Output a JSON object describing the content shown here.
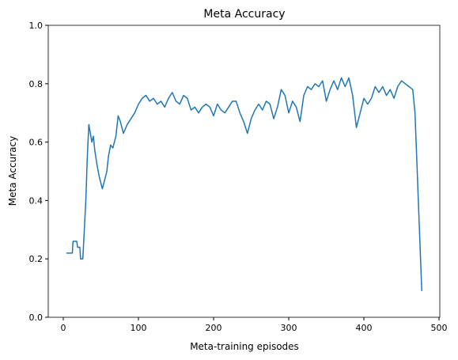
{
  "chart_data": {
    "type": "line",
    "title": "Meta Accuracy",
    "xlabel": "Meta-training episodes",
    "ylabel": "Meta Accuracy",
    "x": [
      4,
      12,
      13,
      18,
      19,
      22,
      23,
      26,
      28,
      30,
      32,
      34,
      36,
      38,
      40,
      42,
      45,
      48,
      50,
      52,
      55,
      58,
      60,
      63,
      66,
      70,
      73,
      76,
      80,
      85,
      90,
      95,
      100,
      105,
      110,
      115,
      120,
      125,
      130,
      135,
      140,
      145,
      150,
      155,
      160,
      165,
      170,
      175,
      180,
      185,
      190,
      195,
      200,
      205,
      210,
      215,
      220,
      225,
      230,
      235,
      240,
      245,
      250,
      255,
      260,
      265,
      270,
      275,
      280,
      285,
      290,
      295,
      300,
      305,
      310,
      315,
      320,
      325,
      330,
      335,
      340,
      345,
      350,
      355,
      360,
      365,
      370,
      375,
      380,
      385,
      390,
      395,
      400,
      405,
      410,
      415,
      420,
      425,
      430,
      435,
      440,
      445,
      450,
      455,
      460,
      465,
      468,
      477
    ],
    "series": [
      {
        "name": "Meta Accuracy",
        "color": "#1f77b4",
        "values": [
          0.22,
          0.22,
          0.26,
          0.26,
          0.24,
          0.24,
          0.2,
          0.2,
          0.3,
          0.4,
          0.55,
          0.66,
          0.63,
          0.6,
          0.62,
          0.57,
          0.52,
          0.48,
          0.46,
          0.44,
          0.47,
          0.5,
          0.55,
          0.59,
          0.58,
          0.62,
          0.69,
          0.67,
          0.63,
          0.66,
          0.68,
          0.7,
          0.73,
          0.75,
          0.76,
          0.74,
          0.75,
          0.73,
          0.74,
          0.72,
          0.75,
          0.77,
          0.74,
          0.73,
          0.76,
          0.75,
          0.71,
          0.72,
          0.7,
          0.72,
          0.73,
          0.72,
          0.69,
          0.73,
          0.71,
          0.7,
          0.72,
          0.74,
          0.74,
          0.7,
          0.67,
          0.63,
          0.68,
          0.71,
          0.73,
          0.71,
          0.74,
          0.73,
          0.68,
          0.72,
          0.78,
          0.76,
          0.7,
          0.74,
          0.72,
          0.67,
          0.76,
          0.79,
          0.78,
          0.8,
          0.79,
          0.81,
          0.74,
          0.78,
          0.81,
          0.78,
          0.82,
          0.79,
          0.82,
          0.76,
          0.65,
          0.7,
          0.75,
          0.73,
          0.75,
          0.79,
          0.77,
          0.79,
          0.76,
          0.78,
          0.75,
          0.79,
          0.81,
          0.8,
          0.79,
          0.78,
          0.7,
          0.09
        ]
      }
    ],
    "xlim": [
      -20,
      501
    ],
    "ylim": [
      0,
      1
    ],
    "xticks": [
      0,
      100,
      200,
      300,
      400,
      500
    ],
    "yticks": [
      {
        "value": 0,
        "label": "0.0"
      },
      0.2,
      0.4,
      0.6,
      0.8,
      {
        "value": 1,
        "label": "1.0"
      }
    ]
  }
}
